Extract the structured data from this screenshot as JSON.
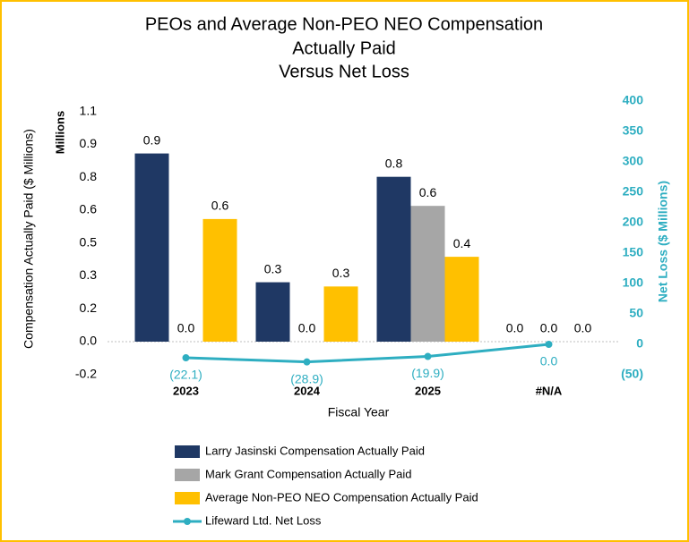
{
  "chart_data": {
    "type": "bar",
    "title_lines": [
      "PEOs and Average Non-PEO NEO Compensation",
      "Actually Paid",
      "Versus Net Loss"
    ],
    "y_label": "Compensation Actually Paid ($ Millions)",
    "y_unit_label": "Millions",
    "y2_label": "Net Loss ($ Millions)",
    "x_label": "Fiscal Year",
    "categories": [
      "2023",
      "2024",
      "2025",
      "#N/A"
    ],
    "series": [
      {
        "name": "Larry Jasinski Compensation Actually Paid",
        "color": "#1f3864",
        "values": [
          0.887,
          0.28,
          0.777,
          0
        ],
        "value_labels": [
          "0.9",
          "0.3",
          "0.8",
          "0.0"
        ]
      },
      {
        "name": "Mark Grant Compensation Actually Paid",
        "color": "#a6a6a6",
        "values": [
          0,
          0,
          0.64,
          0
        ],
        "value_labels": [
          "0.0",
          "0.0",
          "0.6",
          "0.0"
        ]
      },
      {
        "name": "Average Non-PEO NEO Compensation Actually Paid",
        "color": "#ffc000",
        "values": [
          0.578,
          0.26,
          0.4,
          0
        ],
        "value_labels": [
          "0.6",
          "0.3",
          "0.4",
          "0.0"
        ]
      },
      {
        "name": "Lifeward Ltd. Net Loss",
        "type": "line",
        "axis": "y2",
        "color": "#2eaec1",
        "values": [
          -22.1,
          -28.9,
          -19.9,
          0
        ],
        "value_labels": [
          "(22.1)",
          "(28.9)",
          "(19.9)",
          "0.0"
        ]
      }
    ],
    "ylim": [
      -0.156,
      1.134
    ],
    "yticks": [
      {
        "value": -0.156,
        "label": "-0.2"
      },
      {
        "value": 0,
        "label": "0.0"
      },
      {
        "value": 0.155,
        "label": "0.2"
      },
      {
        "value": 0.31,
        "label": "0.3"
      },
      {
        "value": 0.465,
        "label": "0.5"
      },
      {
        "value": 0.62,
        "label": "0.6"
      },
      {
        "value": 0.775,
        "label": "0.8"
      },
      {
        "value": 0.93,
        "label": "0.9"
      },
      {
        "value": 1.085,
        "label": "1.1"
      }
    ],
    "y2lim": [
      -50,
      400
    ],
    "y2ticks": [
      {
        "value": -50,
        "label": "(50)"
      },
      0,
      50,
      100,
      150,
      200,
      250,
      300,
      350,
      400
    ]
  }
}
